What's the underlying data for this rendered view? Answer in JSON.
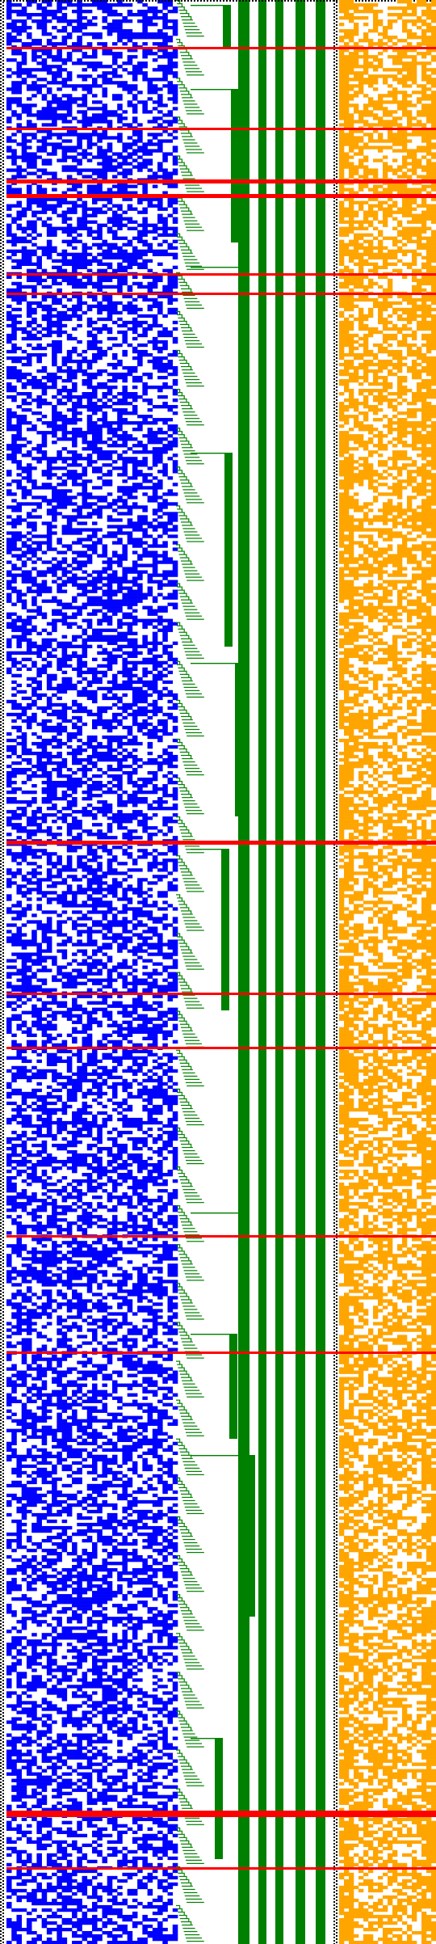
{
  "texts": [],
  "colors": {
    "background": "#ffffff",
    "left_bits": "#0000ff",
    "ladder": "#008000",
    "vertical_bars": "#008000",
    "right_bits": "#ffa500",
    "dotted_separator": "#000000",
    "horizontal_markers": "#ff0000"
  },
  "bands": [
    {
      "name": "left-bit-grid",
      "color_key": "left_bits",
      "cols": 34,
      "rows": 600
    },
    {
      "name": "staircase-ladder",
      "color_key": "ladder",
      "steps": 600
    },
    {
      "name": "vertical-green-bars",
      "color_key": "vertical_bars",
      "count": 5
    },
    {
      "name": "right-bit-grid",
      "color_key": "right_bits",
      "cols": 20,
      "rows": 600
    }
  ],
  "markers": {
    "count": 14
  }
}
